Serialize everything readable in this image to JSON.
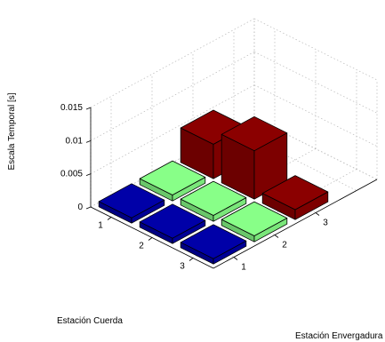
{
  "chart_data": {
    "type": "bar3d",
    "zlabel": "Escala Temporal [s]",
    "xlabel": "Estación Cuerda",
    "ylabel": "Estación Envergadura",
    "x_ticks": [
      "1",
      "2",
      "3"
    ],
    "y_ticks": [
      "1",
      "2",
      "3"
    ],
    "z_ticks": [
      "0",
      "0.005",
      "0.01",
      "0.015"
    ],
    "zlim": [
      0,
      0.015
    ],
    "grid": true,
    "series": [
      {
        "color": "#0000a8",
        "bars": [
          {
            "cuerda": 1,
            "envergadura": 1,
            "value": 0.0008
          },
          {
            "cuerda": 2,
            "envergadura": 1,
            "value": 0.0008
          },
          {
            "cuerda": 3,
            "envergadura": 1,
            "value": 0.0008
          }
        ]
      },
      {
        "color": "#88ff88",
        "bars": [
          {
            "cuerda": 1,
            "envergadura": 2,
            "value": 0.0009
          },
          {
            "cuerda": 2,
            "envergadura": 2,
            "value": 0.0009
          },
          {
            "cuerda": 3,
            "envergadura": 2,
            "value": 0.0009
          }
        ]
      },
      {
        "color": "#8b0000",
        "bars": [
          {
            "cuerda": 1,
            "envergadura": 3,
            "value": 0.0052
          },
          {
            "cuerda": 2,
            "envergadura": 3,
            "value": 0.0073
          },
          {
            "cuerda": 3,
            "envergadura": 3,
            "value": 0.0015
          }
        ]
      }
    ]
  }
}
